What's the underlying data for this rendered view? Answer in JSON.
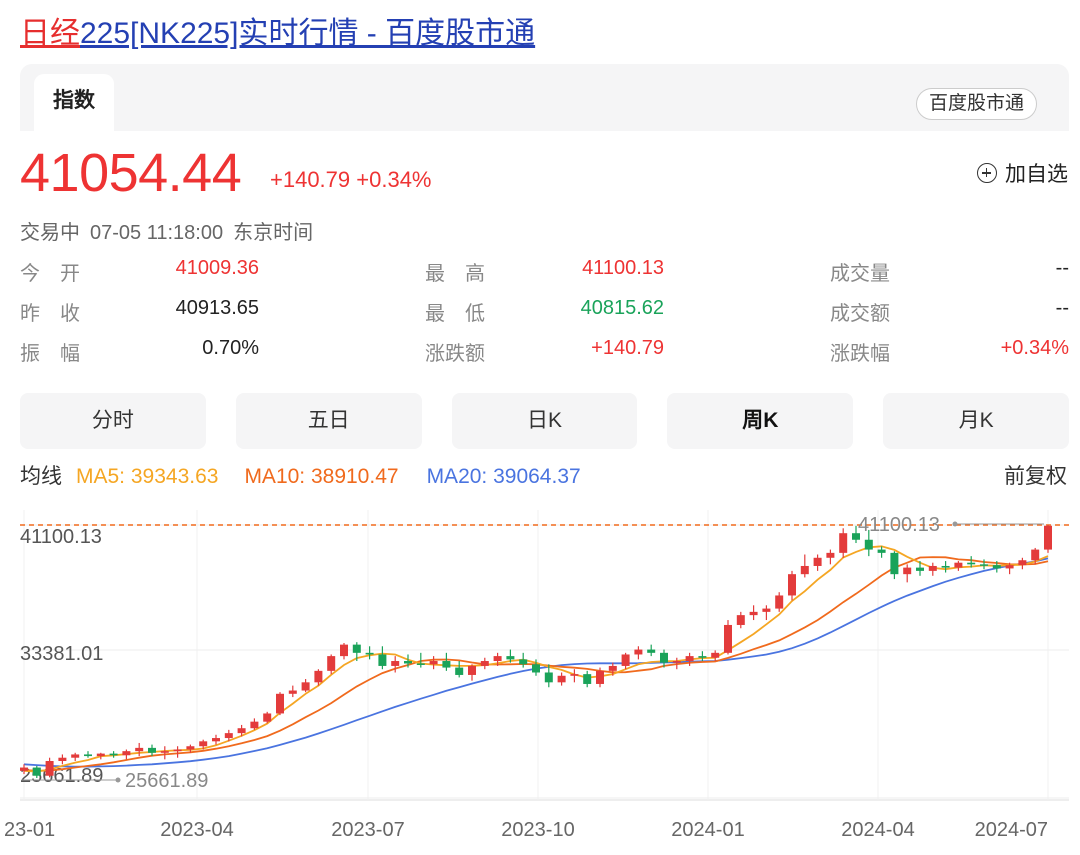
{
  "page_title": {
    "highlight": "日经",
    "rest": "225[NK225]实时行情 - 百度股市通"
  },
  "tabs": {
    "active": "指数",
    "source": "百度股市通"
  },
  "quote": {
    "price": "41054.44",
    "change": "+140.79",
    "change_pct": "+0.34%",
    "watch_label": "加自选"
  },
  "status": {
    "state": "交易中",
    "datetime": "07-05 11:18:00",
    "timezone": "东京时间"
  },
  "stats": {
    "open_label": "今　开",
    "open": "41009.36",
    "prev_close_label": "昨　收",
    "prev_close": "40913.65",
    "amplitude_label": "振　幅",
    "amplitude": "0.70%",
    "high_label": "最　高",
    "high": "41100.13",
    "low_label": "最　低",
    "low": "40815.62",
    "change_amt_label": "涨跌额",
    "change_amt": "+140.79",
    "volume_label": "成交量",
    "volume": "--",
    "turnover_label": "成交额",
    "turnover": "--",
    "change_pct_label": "涨跌幅",
    "change_pct": "+0.34%"
  },
  "period_tabs": [
    "分时",
    "五日",
    "日K",
    "周K",
    "月K"
  ],
  "period_active": "周K",
  "ma_legend": {
    "label": "均线",
    "ma5": "MA5: 39343.63",
    "ma10": "MA10: 38910.47",
    "ma20": "MA20: 39064.37",
    "adjust": "前复权"
  },
  "colors": {
    "up": "#e33b3b",
    "down": "#1aa35a",
    "ma5": "#f5a623",
    "ma10": "#f06a1d",
    "ma20": "#4a74e0",
    "ref": "#f06a1d"
  },
  "chart_data": {
    "type": "candlestick",
    "x_ticks": [
      "23-01",
      "2023-04",
      "2023-07",
      "2023-10",
      "2024-01",
      "2024-04",
      "2024-07"
    ],
    "y_ticks": [
      "41100.13",
      "33381.01",
      "25661.89"
    ],
    "max_label": "41100.13",
    "min_label": "25661.89",
    "ylim": [
      25661.89,
      41100.13
    ],
    "candles": [
      [
        26100,
        26500,
        25900,
        26300
      ],
      [
        26300,
        26400,
        25661.89,
        25800
      ],
      [
        25800,
        26900,
        25700,
        26700
      ],
      [
        26700,
        27100,
        26500,
        26900
      ],
      [
        26900,
        27200,
        26700,
        27100
      ],
      [
        27100,
        27300,
        26900,
        27000
      ],
      [
        27000,
        27200,
        26800,
        27150
      ],
      [
        27150,
        27300,
        26900,
        27050
      ],
      [
        27050,
        27400,
        26800,
        27300
      ],
      [
        27300,
        27800,
        27000,
        27500
      ],
      [
        27500,
        27700,
        27000,
        27200
      ],
      [
        27200,
        27600,
        26800,
        27300
      ],
      [
        27300,
        27600,
        26900,
        27400
      ],
      [
        27400,
        27700,
        27200,
        27600
      ],
      [
        27600,
        28000,
        27400,
        27900
      ],
      [
        27900,
        28300,
        27700,
        28100
      ],
      [
        28100,
        28600,
        27900,
        28400
      ],
      [
        28400,
        28900,
        28200,
        28700
      ],
      [
        28700,
        29300,
        28600,
        29100
      ],
      [
        29100,
        29700,
        29000,
        29600
      ],
      [
        29600,
        30900,
        29500,
        30800
      ],
      [
        30800,
        31300,
        30600,
        31000
      ],
      [
        31000,
        31700,
        30900,
        31500
      ],
      [
        31500,
        32300,
        31300,
        32200
      ],
      [
        32200,
        33200,
        32000,
        33100
      ],
      [
        33100,
        33900,
        32900,
        33800
      ],
      [
        33800,
        33950,
        32800,
        33300
      ],
      [
        33300,
        33700,
        32900,
        33200
      ],
      [
        33200,
        33700,
        32300,
        32500
      ],
      [
        32500,
        33100,
        32100,
        32800
      ],
      [
        32800,
        33200,
        32400,
        32650
      ],
      [
        32650,
        33300,
        32400,
        32600
      ],
      [
        32600,
        33100,
        32300,
        32800
      ],
      [
        32800,
        33300,
        32200,
        32400
      ],
      [
        32400,
        32800,
        31800,
        31950
      ],
      [
        31950,
        32600,
        31600,
        32500
      ],
      [
        32500,
        33000,
        32300,
        32800
      ],
      [
        32800,
        33300,
        32500,
        33100
      ],
      [
        33100,
        33500,
        32700,
        32900
      ],
      [
        32900,
        33300,
        32400,
        32600
      ],
      [
        32600,
        32900,
        31900,
        32100
      ],
      [
        32100,
        32600,
        31200,
        31500
      ],
      [
        31500,
        32100,
        31300,
        31900
      ],
      [
        31900,
        32300,
        31500,
        32000
      ],
      [
        32000,
        32200,
        31200,
        31400
      ],
      [
        31400,
        32400,
        31200,
        32200
      ],
      [
        32200,
        32700,
        31900,
        32500
      ],
      [
        32500,
        33300,
        32300,
        33200
      ],
      [
        33200,
        33700,
        32900,
        33500
      ],
      [
        33500,
        33800,
        33100,
        33300
      ],
      [
        33300,
        33500,
        32400,
        32700
      ],
      [
        32700,
        33000,
        32300,
        32800
      ],
      [
        32800,
        33300,
        32500,
        33100
      ],
      [
        33100,
        33400,
        32800,
        33000
      ],
      [
        33000,
        33450,
        32800,
        33300
      ],
      [
        33300,
        35300,
        33200,
        35000
      ],
      [
        35000,
        35800,
        34800,
        35600
      ],
      [
        35600,
        36200,
        35300,
        35800
      ],
      [
        35800,
        36200,
        35300,
        36000
      ],
      [
        36000,
        37000,
        35800,
        36800
      ],
      [
        36800,
        38300,
        36500,
        38100
      ],
      [
        38100,
        39300,
        37900,
        38600
      ],
      [
        38600,
        39300,
        38300,
        39100
      ],
      [
        39100,
        39600,
        38700,
        39400
      ],
      [
        39400,
        40900,
        39100,
        40600
      ],
      [
        40600,
        41050,
        40000,
        40200
      ],
      [
        40200,
        40800,
        39200,
        39600
      ],
      [
        39600,
        39800,
        39100,
        39400
      ],
      [
        39400,
        39500,
        37800,
        38100
      ],
      [
        38100,
        38700,
        37600,
        38500
      ],
      [
        38500,
        38900,
        38000,
        38300
      ],
      [
        38300,
        38800,
        38000,
        38600
      ],
      [
        38600,
        38900,
        38200,
        38500
      ],
      [
        38500,
        38900,
        38300,
        38800
      ],
      [
        38800,
        39200,
        38500,
        38700
      ],
      [
        38700,
        39000,
        38400,
        38650
      ],
      [
        38650,
        38900,
        38200,
        38450
      ],
      [
        38450,
        38800,
        38100,
        38650
      ],
      [
        38650,
        39100,
        38400,
        38950
      ],
      [
        38950,
        39700,
        38700,
        39600
      ],
      [
        39600,
        41100.13,
        39400,
        41054.44
      ]
    ],
    "ma5": [
      26100,
      26050,
      26180,
      26400,
      26600,
      26760,
      26990,
      27050,
      27120,
      27200,
      27250,
      27310,
      27350,
      27380,
      27460,
      27660,
      27940,
      28240,
      28580,
      28980,
      29640,
      30200,
      30800,
      31300,
      31960,
      32560,
      32980,
      33150,
      33250,
      33200,
      32880,
      32650,
      32580,
      32540,
      32500,
      32510,
      32550,
      32660,
      32800,
      32880,
      32700,
      32440,
      32260,
      31980,
      31790,
      31870,
      32000,
      32300,
      32600,
      32740,
      32780,
      32800,
      32900,
      32980,
      33000,
      33460,
      33950,
      34450,
      35040,
      35640,
      36460,
      37060,
      37760,
      38360,
      39120,
      39460,
      39740,
      39800,
      39580,
      39160,
      38800,
      38480,
      38400,
      38520,
      38560,
      38640,
      38610,
      38650,
      38680,
      38870,
      39200
    ],
    "ma10": [
      26150,
      26100,
      26120,
      26200,
      26300,
      26400,
      26500,
      26620,
      26760,
      26900,
      27020,
      27100,
      27160,
      27230,
      27320,
      27450,
      27600,
      27780,
      27980,
      28220,
      28550,
      28940,
      29370,
      29780,
      30230,
      30750,
      31250,
      31670,
      32060,
      32340,
      32560,
      32800,
      32880,
      32890,
      32840,
      32710,
      32600,
      32590,
      32600,
      32620,
      32600,
      32520,
      32450,
      32390,
      32320,
      32200,
      32110,
      32120,
      32210,
      32300,
      32500,
      32610,
      32700,
      32740,
      32770,
      32990,
      33240,
      33520,
      33780,
      34060,
      34440,
      34850,
      35300,
      35820,
      36390,
      36900,
      37450,
      38020,
      38500,
      38800,
      39120,
      39140,
      39130,
      39000,
      38950,
      38840,
      38780,
      38700,
      38690,
      38720,
      38890
    ],
    "ma20": [
      26500,
      26450,
      26400,
      26370,
      26360,
      26360,
      26370,
      26390,
      26420,
      26460,
      26500,
      26560,
      26620,
      26690,
      26780,
      26880,
      27000,
      27150,
      27310,
      27480,
      27680,
      27900,
      28130,
      28380,
      28640,
      28910,
      29190,
      29460,
      29730,
      30000,
      30250,
      30500,
      30740,
      30980,
      31200,
      31420,
      31630,
      31830,
      32020,
      32190,
      32340,
      32450,
      32550,
      32610,
      32650,
      32660,
      32660,
      32660,
      32670,
      32690,
      32710,
      32730,
      32760,
      32780,
      32800,
      32880,
      32980,
      33080,
      33200,
      33360,
      33580,
      33860,
      34180,
      34540,
      34930,
      35330,
      35730,
      36110,
      36470,
      36790,
      37080,
      37370,
      37640,
      37880,
      38100,
      38300,
      38470,
      38620,
      38750,
      38880,
      39060
    ]
  }
}
